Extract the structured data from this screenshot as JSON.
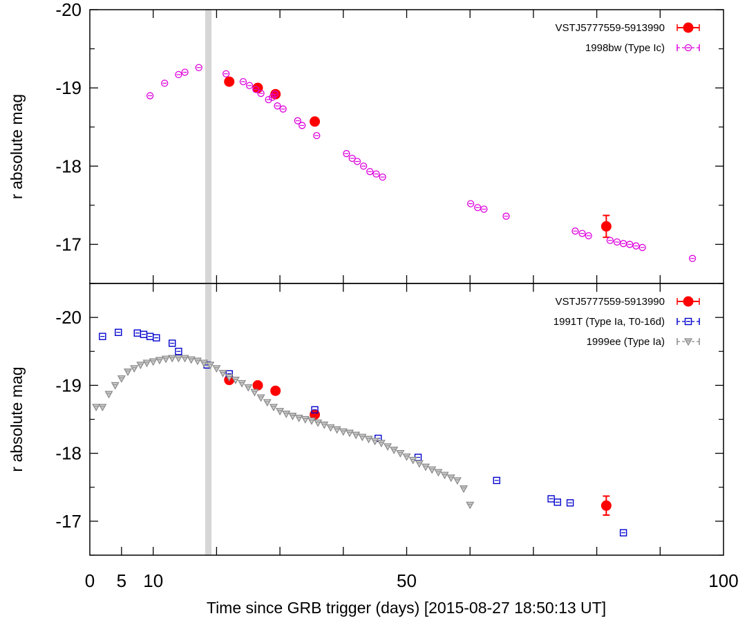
{
  "chart_data": [
    {
      "type": "scatter",
      "panel": "top",
      "ylabel": "r  absolute  mag",
      "xlim": [
        0,
        100
      ],
      "ylim": [
        -16.5,
        -20.0
      ],
      "y_inverted": true,
      "y_ticks": [
        -20,
        -19,
        -18,
        -17
      ],
      "y_tick_labels": [
        "-20",
        "-19",
        "-18",
        "-17"
      ],
      "shaded_band_x": [
        18.2,
        19.2
      ],
      "legend_position": "top-right",
      "series": [
        {
          "name": "VSTJ5777559-5913990",
          "marker": "filled-circle",
          "color": "#ff0000",
          "x": [
            22,
            26.5,
            29.3,
            35.5,
            81.5
          ],
          "y": [
            -19.08,
            -19.0,
            -18.92,
            -18.57,
            -17.23
          ],
          "yerr": [
            0,
            0,
            0,
            0,
            0.14
          ]
        },
        {
          "name": "1998bw (Type Ic)",
          "marker": "open-circle",
          "color": "#dd00dd",
          "x": [
            9.5,
            11.8,
            14,
            15,
            17.2,
            21.5,
            24.2,
            25.2,
            26.2,
            27,
            28.2,
            28.8,
            29.2,
            29.6,
            30.5,
            32.8,
            33.5,
            35.8,
            40.5,
            41.4,
            42.2,
            43.2,
            44.2,
            45.2,
            46.2,
            60.1,
            61.2,
            62.2,
            65.7,
            76.6,
            77.7,
            78.7,
            82.1,
            83.2,
            84.2,
            85.2,
            86.2,
            87.2,
            95.1
          ],
          "y": [
            -18.9,
            -19.06,
            -19.17,
            -19.2,
            -19.26,
            -19.18,
            -19.08,
            -19.03,
            -18.98,
            -18.93,
            -18.85,
            -18.88,
            -18.92,
            -18.77,
            -18.73,
            -18.58,
            -18.52,
            -18.39,
            -18.16,
            -18.1,
            -18.06,
            -18.0,
            -17.93,
            -17.9,
            -17.86,
            -17.52,
            -17.47,
            -17.45,
            -17.36,
            -17.17,
            -17.14,
            -17.11,
            -17.05,
            -17.03,
            -17.01,
            -17.0,
            -16.98,
            -16.96,
            -16.82
          ]
        }
      ]
    },
    {
      "type": "scatter",
      "panel": "bottom",
      "xlabel": "Time since GRB trigger (days) [2015-08-27 18:50:13 UT]",
      "ylabel": "r  absolute  mag",
      "xlim": [
        0,
        100
      ],
      "ylim": [
        -16.5,
        -20.5
      ],
      "y_inverted": true,
      "x_ticks": [
        0,
        5,
        10,
        50,
        100
      ],
      "x_tick_labels": [
        "0",
        "5",
        "10",
        "50",
        "100"
      ],
      "y_ticks": [
        -20,
        -19,
        -18,
        -17
      ],
      "y_tick_labels": [
        "-20",
        "-19",
        "-18",
        "-17"
      ],
      "shaded_band_x": [
        18.2,
        19.2
      ],
      "legend_position": "top-right",
      "series": [
        {
          "name": "VSTJ5777559-5913990",
          "marker": "filled-circle",
          "color": "#ff0000",
          "x": [
            22,
            26.5,
            29.3,
            35.5,
            81.5
          ],
          "y": [
            -19.08,
            -19.0,
            -18.92,
            -18.57,
            -17.23
          ],
          "yerr": [
            0,
            0,
            0,
            0,
            0.14
          ]
        },
        {
          "name": "1991T (Type Ia, T0-16d)",
          "marker": "open-square",
          "color": "#0000cc",
          "x": [
            2,
            4.5,
            7.5,
            8.5,
            9.5,
            10.5,
            13,
            14,
            18.5,
            22,
            35.5,
            45.5,
            51.8,
            64.2,
            72.8,
            73.8,
            75.8,
            84.2
          ],
          "y": [
            -19.72,
            -19.78,
            -19.77,
            -19.75,
            -19.72,
            -19.7,
            -19.62,
            -19.5,
            -19.3,
            -19.17,
            -18.64,
            -18.22,
            -17.94,
            -17.6,
            -17.33,
            -17.28,
            -17.27,
            -16.83
          ]
        },
        {
          "name": "1999ee (Type Ia)",
          "marker": "open-triangle-down",
          "color": "#888888",
          "x": [
            1,
            2,
            3,
            4,
            5,
            6,
            7,
            8,
            9,
            10,
            11,
            12,
            13,
            14,
            15,
            16,
            17,
            18,
            19,
            20,
            21,
            22,
            23,
            24,
            25,
            26,
            27,
            28,
            29,
            30,
            31,
            32,
            33,
            34,
            35,
            36,
            37,
            38,
            39,
            40,
            41,
            42,
            43,
            44,
            45,
            46,
            47,
            48,
            49,
            50,
            51,
            52,
            53,
            54,
            55,
            56,
            57,
            58,
            59,
            60
          ],
          "y": [
            -18.68,
            -18.68,
            -18.87,
            -19.0,
            -19.1,
            -19.2,
            -19.25,
            -19.3,
            -19.33,
            -19.35,
            -19.37,
            -19.39,
            -19.4,
            -19.4,
            -19.4,
            -19.38,
            -19.36,
            -19.33,
            -19.3,
            -19.25,
            -19.18,
            -19.12,
            -19.08,
            -19.03,
            -18.97,
            -18.9,
            -18.82,
            -18.75,
            -18.68,
            -18.62,
            -18.58,
            -18.55,
            -18.52,
            -18.5,
            -18.48,
            -18.45,
            -18.42,
            -18.38,
            -18.35,
            -18.32,
            -18.3,
            -18.27,
            -18.24,
            -18.21,
            -18.18,
            -18.15,
            -18.1,
            -18.05,
            -18.0,
            -17.95,
            -17.9,
            -17.85,
            -17.8,
            -17.76,
            -17.72,
            -17.68,
            -17.64,
            -17.6,
            -17.48,
            -17.24
          ]
        }
      ]
    }
  ]
}
